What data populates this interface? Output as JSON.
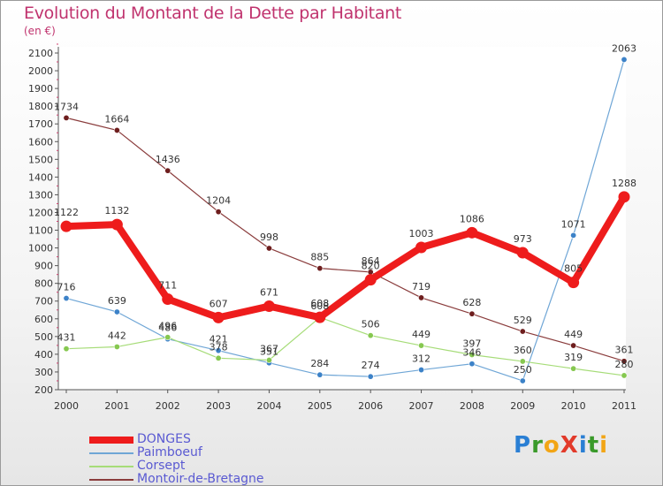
{
  "title": "Evolution du Montant de la Dette par Habitant",
  "unit": "(en €)",
  "logo": {
    "text": "ProXiti",
    "letters": [
      "P",
      "r",
      "o",
      "X",
      "i",
      "t",
      "i"
    ],
    "colors": [
      "#2a7fd4",
      "#3a9a2a",
      "#f2a515",
      "#e23a2a",
      "#2a7fd4",
      "#3a9a2a",
      "#f2a515"
    ]
  },
  "chart_data": {
    "type": "line",
    "title": "Evolution du Montant de la Dette par Habitant",
    "ylabel": "(en €)",
    "xlabel": "",
    "x": [
      "2000",
      "2001",
      "2002",
      "2003",
      "2004",
      "2005",
      "2006",
      "2007",
      "2008",
      "2009",
      "2010",
      "2011"
    ],
    "ylim": [
      200,
      2100
    ],
    "yticks": [
      200,
      300,
      400,
      500,
      600,
      700,
      800,
      900,
      1000,
      1100,
      1200,
      1300,
      1400,
      1500,
      1600,
      1700,
      1800,
      1900,
      2000,
      2100
    ],
    "grid": false,
    "legend": "bottom-left",
    "series": [
      {
        "name": "DONGES",
        "color": "#ee1c1c",
        "values": [
          1122,
          1132,
          711,
          607,
          671,
          608,
          820,
          1003,
          1086,
          973,
          805,
          1288
        ]
      },
      {
        "name": "Paimboeuf",
        "color": "#6fa6d6",
        "marker": "#3c82c8",
        "values": [
          716,
          639,
          486,
          421,
          351,
          284,
          274,
          312,
          346,
          250,
          1071,
          2063
        ]
      },
      {
        "name": "Corsept",
        "color": "#a6dc78",
        "marker": "#86c850",
        "values": [
          431,
          442,
          496,
          378,
          367,
          608,
          506,
          449,
          397,
          360,
          319,
          280
        ]
      },
      {
        "name": "Montoir-de-Bretagne",
        "color": "#8a3c3c",
        "marker": "#6e1e1e",
        "values": [
          1734,
          1664,
          1436,
          1204,
          998,
          885,
          864,
          719,
          628,
          529,
          449,
          361
        ]
      }
    ]
  }
}
